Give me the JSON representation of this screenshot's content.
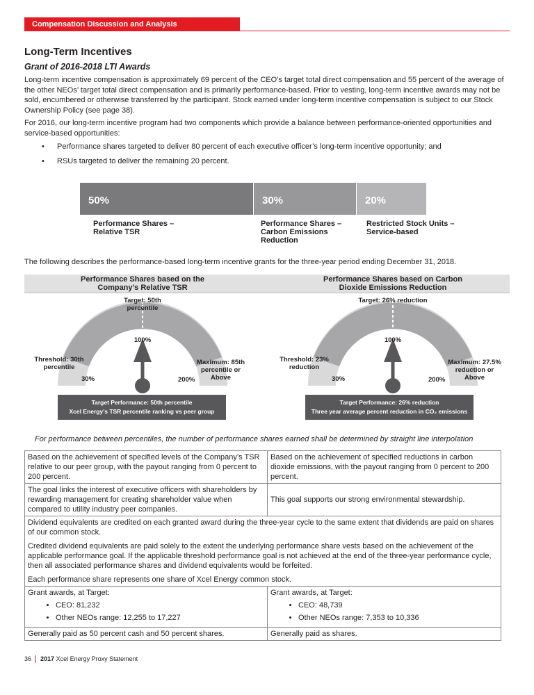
{
  "header": {
    "section": "Compensation Discussion and Analysis"
  },
  "title": "Long-Term Incentives",
  "subtitle": "Grant of 2016-2018 LTI Awards",
  "para1": "Long-term incentive compensation is approximately 69 percent of the CEO’s target total direct compensation and 55 percent of the average of the other NEOs’ target total direct compensation and is primarily performance-based. Prior to vesting, long-term incentive awards may not be sold, encumbered or otherwise transferred by the participant. Stock earned under long-term incentive compensation is subject to our Stock Ownership Policy (see page 38).",
  "para2": "For 2016, our long-term incentive program had two components which provide a balance between performance-oriented opportunities and service-based opportunities:",
  "bullets": [
    "Performance shares targeted to deliver 80 percent of each executive officer’s long-term incentive opportunity; and",
    "RSUs targeted to deliver the remaining 20 percent."
  ],
  "mix": [
    {
      "pct": "50%",
      "label": "Performance Shares – Relative TSR",
      "color": "#7a7a7c"
    },
    {
      "pct": "30%",
      "label": "Performance Shares – Carbon Emissions Reduction",
      "color": "#98989a"
    },
    {
      "pct": "20%",
      "label": "Restricted Stock Units – Service-based",
      "color": "#b5b5b7"
    }
  ],
  "para3": "The following describes the performance-based long-term incentive grants for the three-year period ending December 31, 2018.",
  "gauges": [
    {
      "title": "Performance Shares based on the Company’s Relative TSR",
      "target": "Target: 50th percentile",
      "threshold": "Threshold: 30th percentile",
      "maximum": "Maximum: 85th percentile or Above",
      "low": "30%",
      "mid": "100%",
      "high": "200%",
      "box1": "Target Performance: 50th percentile",
      "box2": "Xcel Energy’s TSR percentile ranking vs peer group"
    },
    {
      "title": "Performance Shares based on Carbon Dioxide Emissions Reduction",
      "target": "Target: 26% reduction",
      "threshold": "Threshold: 23% reduction",
      "maximum": "Maximum: 27.5% reduction or Above",
      "low": "30%",
      "mid": "100%",
      "high": "200%",
      "box1": "Target Performance: 26% reduction",
      "box2": "Three year average percent reduction in CO₂ emissions"
    }
  ],
  "note": "For performance between percentiles, the number of performance shares earned shall be determined by straight line interpolation",
  "table": {
    "r1": [
      "Based on the achievement of specified levels of the Company’s TSR relative to our peer group, with the payout ranging from 0 percent to 200 percent.",
      "Based on the achievement of specified reductions in carbon dioxide emissions, with the payout ranging from 0 percent to 200 percent."
    ],
    "r2": [
      "The goal links the interest of executive officers with shareholders by rewarding management for creating shareholder value when compared to utility industry peer companies.",
      "This goal supports our strong environmental stewardship."
    ],
    "full": [
      "Dividend equivalents are credited on each granted award during the three-year cycle to the same extent that dividends are paid on shares of our common stock.",
      "Credited dividend equivalents are paid solely to the extent the underlying performance share vests based on the achievement of the applicable performance goal. If the applicable threshold performance goal is not achieved at the end of the three-year performance cycle, then all associated performance shares and dividend equivalents would be forfeited.",
      "Each performance share represents one share of Xcel Energy common stock."
    ],
    "grant_label": "Grant awards, at Target:",
    "left_grants": [
      "CEO: 81,232",
      "Other NEOs range: 12,255 to 17,227"
    ],
    "right_grants": [
      "CEO: 48,739",
      "Other NEOs range: 7,353 to 10,336"
    ],
    "r_last": [
      "Generally paid as 50 percent cash and 50 percent shares.",
      "Generally paid as shares."
    ]
  },
  "footer": {
    "page": "36",
    "doc_bold": "2017",
    "doc": "Xcel Energy Proxy Statement"
  }
}
